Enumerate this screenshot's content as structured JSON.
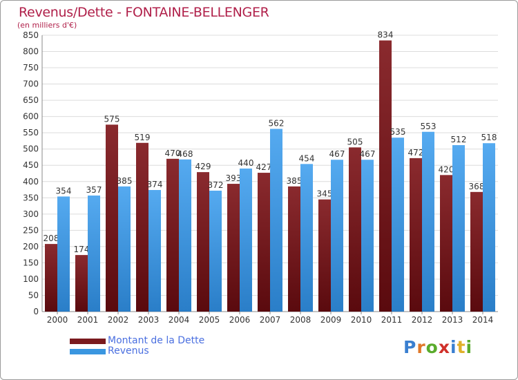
{
  "title": "Revenus/Dette - FONTAINE-BELLENGER",
  "subtitle": "(en milliers d'€)",
  "logo_text": "Proxiti",
  "colors": {
    "dette": "#7a1a1e",
    "revenus": "#3a96e0",
    "title": "#b0204a",
    "legend_text": "#4a6fe0"
  },
  "legend": {
    "items": [
      {
        "label": "Montant de la Dette",
        "color": "#7a1a1e"
      },
      {
        "label": "Revenus",
        "color": "#3a96e0"
      }
    ],
    "placement": "bottom-left"
  },
  "chart_data": {
    "type": "bar",
    "categories": [
      "2000",
      "2001",
      "2002",
      "2003",
      "2004",
      "2005",
      "2006",
      "2007",
      "2008",
      "2009",
      "2010",
      "2011",
      "2012",
      "2013",
      "2014"
    ],
    "series": [
      {
        "name": "Montant de la Dette",
        "values": [
          208,
          174,
          575,
          519,
          470,
          429,
          393,
          427,
          385,
          345,
          505,
          834,
          472,
          420,
          368
        ]
      },
      {
        "name": "Revenus",
        "values": [
          354,
          357,
          385,
          374,
          468,
          372,
          440,
          562,
          454,
          467,
          467,
          535,
          553,
          512,
          518
        ]
      }
    ],
    "ylim": [
      0,
      850
    ],
    "yticks": [
      0,
      50,
      100,
      150,
      200,
      250,
      300,
      350,
      400,
      450,
      500,
      550,
      600,
      650,
      700,
      750,
      800,
      850
    ],
    "grid": true,
    "data_labels": true
  }
}
